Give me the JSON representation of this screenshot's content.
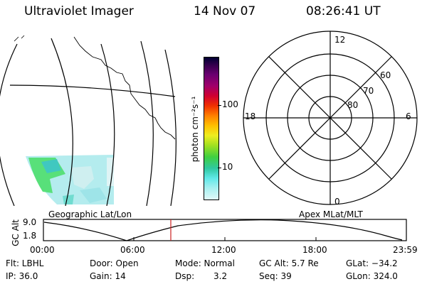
{
  "header": {
    "title": "Ultraviolet Imager",
    "date": "14 Nov 07",
    "time": "08:26:41 UT"
  },
  "colorbar": {
    "unit_label": "photon cm⁻²s⁻¹",
    "ticks": [
      {
        "label": "100",
        "value": 100
      },
      {
        "label": "10",
        "value": 10
      }
    ],
    "colors": [
      "#000033",
      "#3a0050",
      "#6a0070",
      "#a0006a",
      "#d00030",
      "#f03000",
      "#ff8000",
      "#ffc000",
      "#eeee20",
      "#a0e020",
      "#40d040",
      "#30c8a0",
      "#60e8e8",
      "#a8f0f0",
      "#e0f8f8"
    ]
  },
  "polar_plot": {
    "mlt_labels": {
      "top": "12",
      "bottom": "0",
      "left": "18",
      "right": "6"
    },
    "lat_labels": [
      "60",
      "70",
      "80"
    ]
  },
  "altitude_plot": {
    "left_caption": "Geographic Lat/Lon",
    "right_caption": "Apex MLat/MLT",
    "ylabel": "GC Alt",
    "y_ticks": [
      "9.0",
      "1.8"
    ],
    "x_ticks": [
      "00:00",
      "06:00",
      "12:00",
      "18:00",
      "23:59"
    ],
    "current_time_color": "#cc2222"
  },
  "footer": {
    "filter": "Flt: LBHL",
    "door": "Door: Open",
    "mode": "Mode: Normal",
    "gc_alt": "GC Alt: 5.7 Re",
    "glat": "GLat: −34.2",
    "ip": "IP: 36.0",
    "gain": "Gain: 14",
    "dsp_label": "Dsp:",
    "dsp_value": "3.2",
    "seq": "Seq: 39",
    "glon": "GLon: 324.0"
  }
}
